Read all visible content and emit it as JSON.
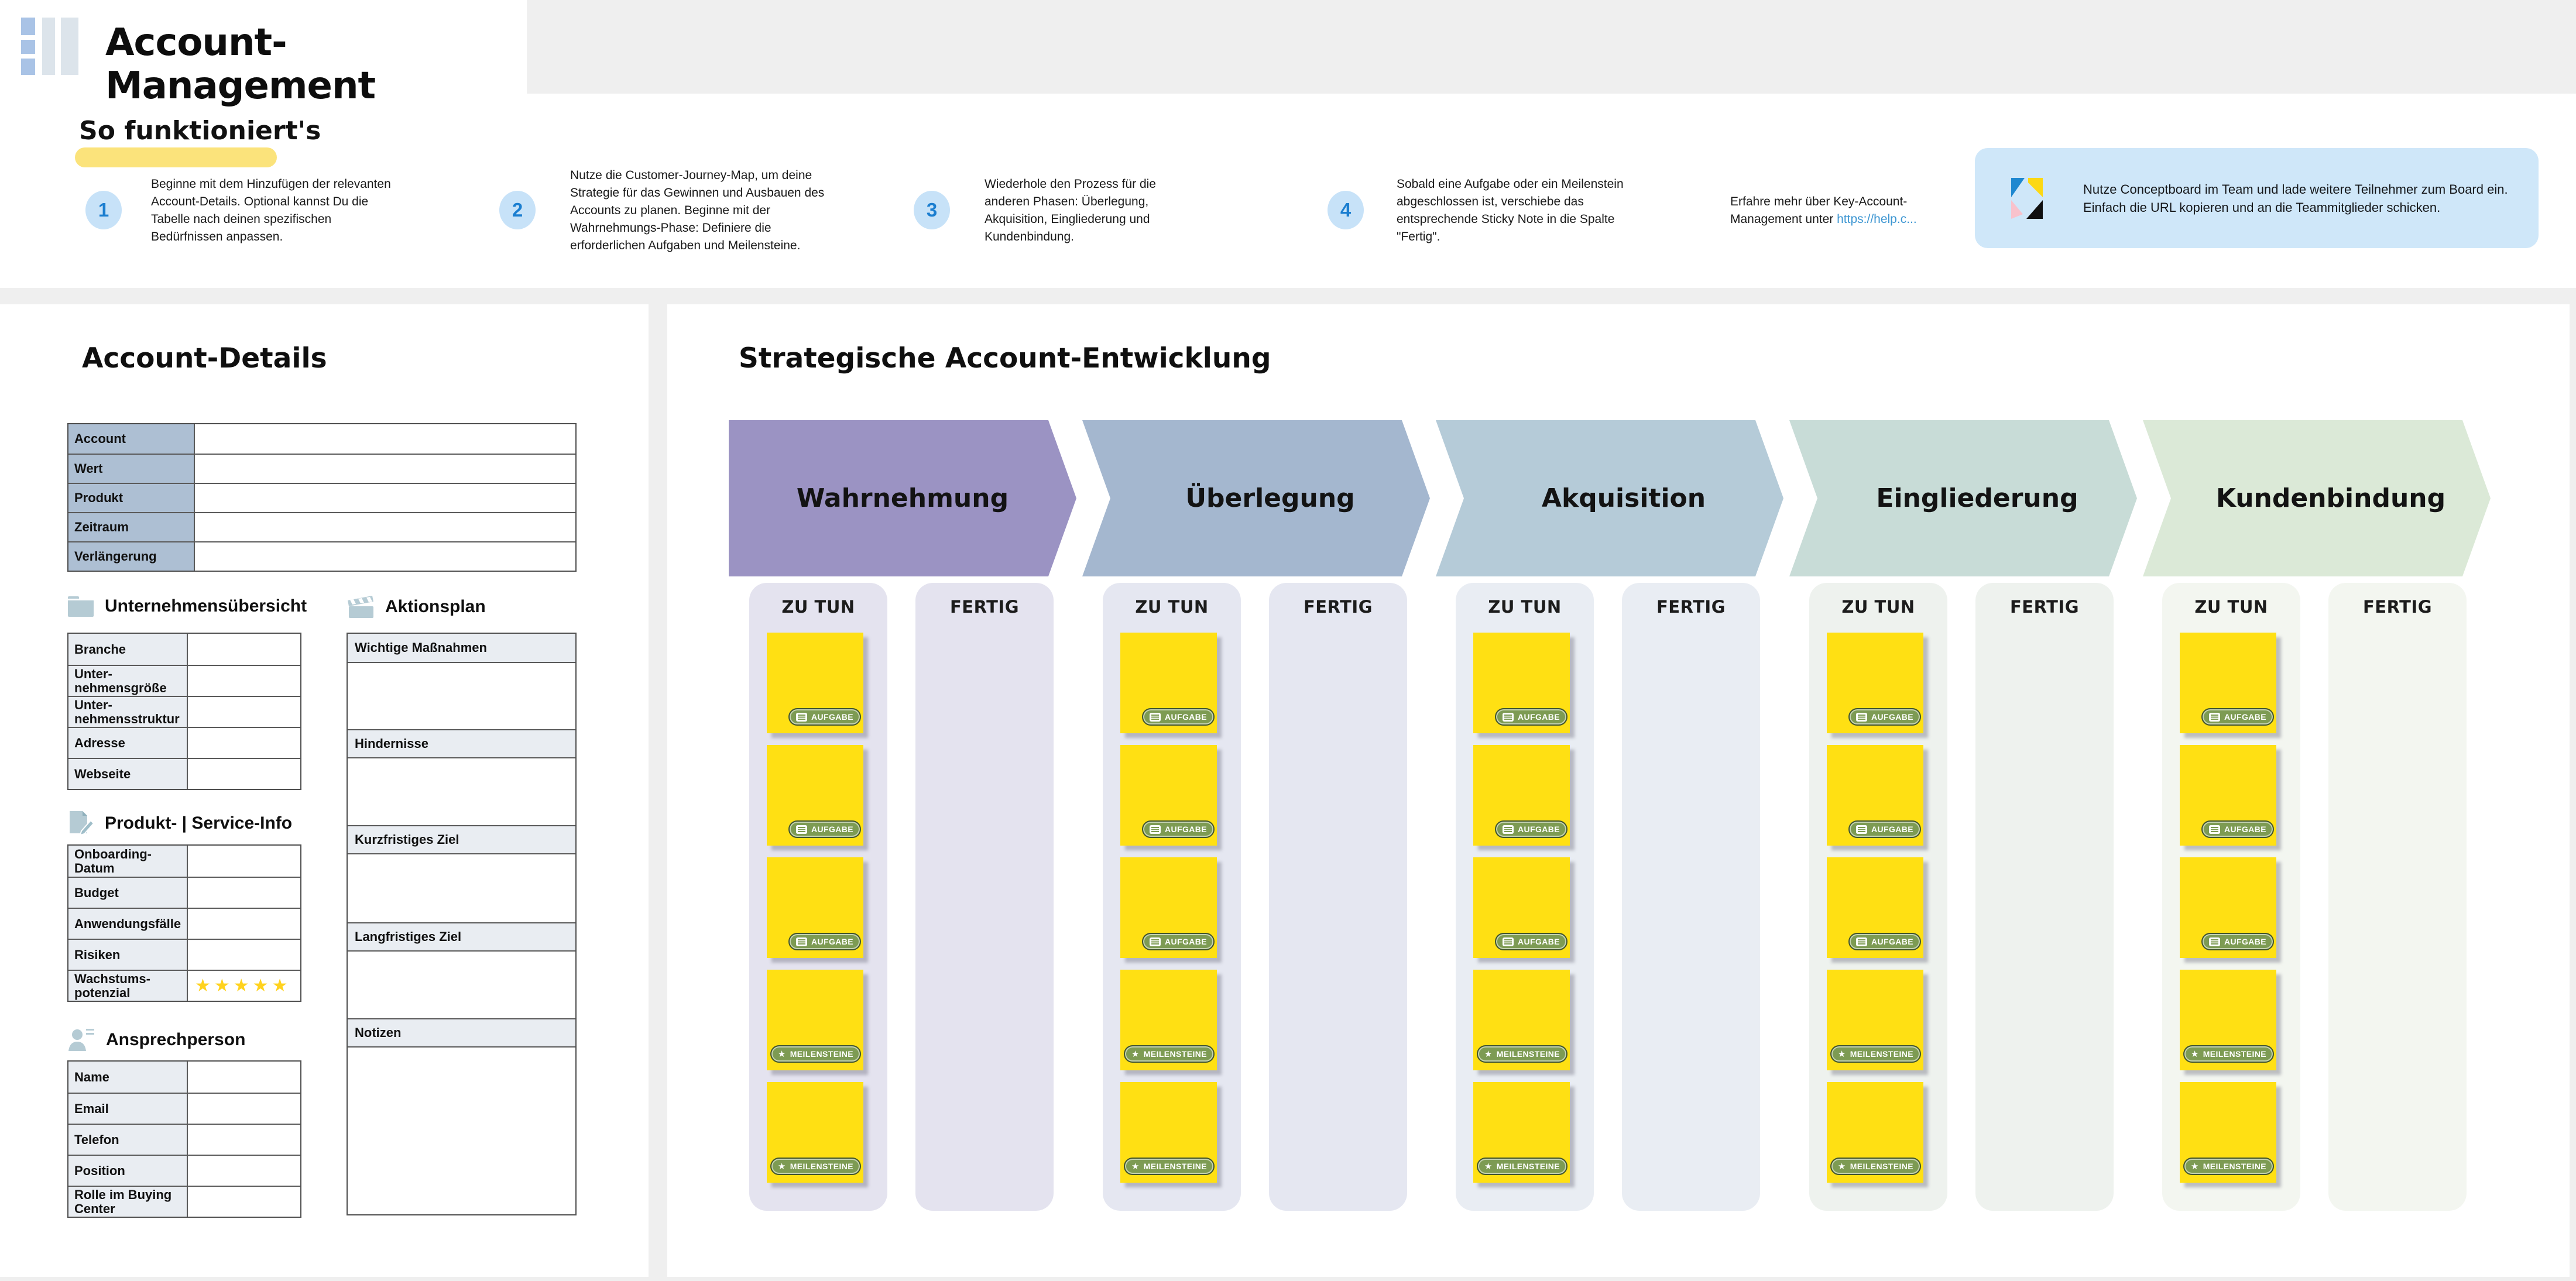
{
  "header": {
    "title": "Account-Management"
  },
  "instructions": {
    "heading": "So funktioniert's",
    "steps": [
      {
        "num": "1",
        "text": "Beginne mit dem Hinzufügen der relevanten Account-Details. Optional kannst Du die Tabelle nach deinen spezifischen Bedürfnissen anpassen."
      },
      {
        "num": "2",
        "text": "Nutze die Customer-Journey-Map, um deine Strategie für das Gewinnen und Ausbauen des Accounts zu planen. Beginne mit der Wahrnehmungs-Phase: Definiere die erforderlichen Aufgaben und Meilensteine."
      },
      {
        "num": "3",
        "text": "Wiederhole den Prozess für die anderen Phasen: Überlegung, Akquisition, Eingliederung und Kundenbindung."
      },
      {
        "num": "4",
        "text": "Sobald eine Aufgabe oder ein Meilenstein abgeschlossen ist, verschiebe das entsprechende Sticky Note in die Spalte \"Fertig\"."
      }
    ],
    "learn_more": {
      "text": "Erfahre mehr über Key-Account-Management unter",
      "link": "https://help.c..."
    },
    "team_tip": "Nutze Conceptboard im Team und lade weitere Teilnehmer zum Board ein. Einfach die URL kopieren und an die Teammitglieder schicken."
  },
  "account_details": {
    "title": "Account-Details",
    "main_table_rows": [
      "Account",
      "Wert",
      "Produkt",
      "Zeitraum",
      "Verlängerung"
    ],
    "sections": [
      {
        "title": "Unternehmensübersicht",
        "icon": "folder-icon",
        "rows": [
          "Branche",
          "Unter-\nnehmensgröße",
          "Unter-\nnehmensstruktur",
          "Adresse",
          "Webseite"
        ]
      },
      {
        "title": "Produkt- | Service-Info",
        "icon": "document-pencil-icon",
        "rows": [
          "Onboarding-Datum",
          "Budget",
          "Anwendungsfälle",
          "Risiken",
          "Wachstums-\npotenzial"
        ],
        "rating_row_index": 4,
        "rating": "★★★★★"
      },
      {
        "title": "Ansprechperson",
        "icon": "person-icon",
        "rows": [
          "Name",
          "Email",
          "Telefon",
          "Position",
          "Rolle im Buying\nCenter"
        ]
      }
    ],
    "action_plan": {
      "title": "Aktionsplan",
      "icon": "clapperboard-icon",
      "sections": [
        "Wichtige Maßnahmen",
        "Hindernisse",
        "Kurzfristiges Ziel",
        "Langfristiges Ziel",
        "Notizen"
      ]
    }
  },
  "journey": {
    "title": "Strategische Account-Entwicklung",
    "phases": [
      {
        "label": "Wahrnehmung",
        "color": "#9b93c3",
        "column_color": "#e4e3ef"
      },
      {
        "label": "Überlegung",
        "color": "#a4b7cf",
        "column_color": "#e5e7f1"
      },
      {
        "label": "Akquisition",
        "color": "#b5cbd8",
        "column_color": "#e9edf3"
      },
      {
        "label": "Eingliederung",
        "color": "#c8dcd7",
        "column_color": "#eef2ee"
      },
      {
        "label": "Kundenbindung",
        "color": "#dbe9d7",
        "column_color": "#f3f6f0"
      }
    ],
    "column_todo": "ZU TUN",
    "column_done": "FERTIG",
    "sticky_color": "#ffe013",
    "sticky_badges": [
      "AUFGABE",
      "AUFGABE",
      "AUFGABE",
      "MEILENSTEINE",
      "MEILENSTEINE"
    ]
  }
}
